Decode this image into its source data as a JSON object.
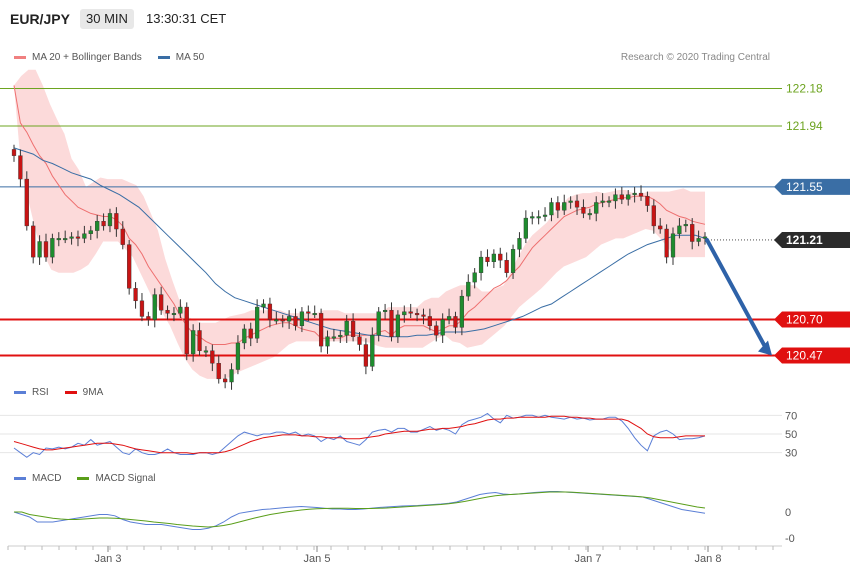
{
  "header": {
    "symbol": "EUR/JPY",
    "timeframe": "30 MIN",
    "time": "13:30:31 CET"
  },
  "legend_main": [
    {
      "label": "MA 20 + Bollinger Bands",
      "color": "#f08080"
    },
    {
      "label": "MA 50",
      "color": "#3a6ea5"
    }
  ],
  "copyright": "Research © 2020 Trading Central",
  "legend_rsi": [
    {
      "label": "RSI",
      "color": "#5b7fd6"
    },
    {
      "label": "9MA",
      "color": "#e01010"
    }
  ],
  "legend_macd": [
    {
      "label": "MACD",
      "color": "#5b7fd6"
    },
    {
      "label": "MACD Signal",
      "color": "#5a9e1a"
    }
  ],
  "colors": {
    "up": "#1e8c2e",
    "down": "#c81414",
    "band": "#fcdada",
    "ma20": "#ee6f6f",
    "ma50": "#3a6ea5",
    "resist": "#6da420",
    "support": "#e01010",
    "arrow": "#2e62a8"
  },
  "chart_data": [
    {
      "type": "candlestick",
      "ylim": [
        120.3,
        122.35
      ],
      "last_price": "121.21",
      "x_ticks": [
        "Jan 3",
        "Jan 5",
        "Jan 7",
        "Jan 8"
      ],
      "levels": [
        {
          "value": 122.18,
          "label": "122.18",
          "kind": "resistance"
        },
        {
          "value": 121.94,
          "label": "121.94",
          "kind": "resistance"
        },
        {
          "value": 121.55,
          "label": "121.55",
          "kind": "pivot"
        },
        {
          "value": 120.7,
          "label": "120.70",
          "kind": "support"
        },
        {
          "value": 120.47,
          "label": "120.47",
          "kind": "support"
        }
      ],
      "projection": {
        "from": 121.21,
        "to": 120.47
      },
      "close": [
        121.75,
        121.6,
        121.3,
        121.1,
        121.2,
        121.1,
        121.22,
        121.22,
        121.22,
        121.23,
        121.22,
        121.25,
        121.27,
        121.33,
        121.3,
        121.38,
        121.28,
        121.18,
        120.9,
        120.82,
        120.72,
        120.7,
        120.86,
        120.76,
        120.74,
        120.74,
        120.78,
        120.48,
        120.63,
        120.5,
        120.5,
        120.42,
        120.32,
        120.3,
        120.38,
        120.55,
        120.64,
        120.58,
        120.78,
        120.8,
        120.7,
        120.7,
        120.69,
        120.72,
        120.66,
        120.75,
        120.74,
        120.74,
        120.53,
        120.59,
        120.59,
        120.6,
        120.69,
        120.59,
        120.54,
        120.4,
        120.6,
        120.75,
        120.76,
        120.59,
        120.73,
        120.75,
        120.74,
        120.73,
        120.72,
        120.66,
        120.6,
        120.7,
        120.72,
        120.65,
        120.85,
        120.94,
        121.0,
        121.1,
        121.07,
        121.12,
        121.08,
        121.0,
        121.15,
        121.22,
        121.35,
        121.36,
        121.36,
        121.37,
        121.45,
        121.4,
        121.45,
        121.46,
        121.42,
        121.38,
        121.38,
        121.45,
        121.46,
        121.46,
        121.5,
        121.47,
        121.5,
        121.51,
        121.49,
        121.43,
        121.3,
        121.28,
        121.1,
        121.25,
        121.3,
        121.31,
        121.2,
        121.22,
        121.23
      ],
      "ma20": [
        122.2,
        121.96,
        121.9,
        121.82,
        121.75,
        121.7,
        121.62,
        121.56,
        121.5,
        121.46,
        121.42,
        121.4,
        121.38,
        121.37,
        121.36,
        121.36,
        121.34,
        121.3,
        121.22,
        121.18,
        121.12,
        121.04,
        120.98,
        120.92,
        120.86,
        120.8,
        120.72,
        120.66,
        120.61,
        120.59,
        120.56,
        120.54,
        120.54,
        120.54,
        120.55,
        120.55,
        120.58,
        120.6,
        120.62,
        120.64,
        120.66,
        120.67,
        120.68,
        120.68,
        120.66,
        120.64,
        120.63,
        120.62,
        120.58,
        120.58,
        120.58,
        120.58,
        120.6,
        120.6,
        120.6,
        120.6,
        120.6,
        120.62,
        120.63,
        120.6,
        120.64,
        120.66,
        120.66,
        120.66,
        120.66,
        120.64,
        120.62,
        120.64,
        120.66,
        120.66,
        120.7,
        120.75,
        120.78,
        120.82,
        120.86,
        120.9,
        120.92,
        120.95,
        121.0,
        121.04,
        121.1,
        121.16,
        121.2,
        121.24,
        121.28,
        121.32,
        121.36,
        121.38,
        121.4,
        121.41,
        121.42,
        121.44,
        121.45,
        121.46,
        121.47,
        121.48,
        121.48,
        121.49,
        121.49,
        121.49,
        121.47,
        121.44,
        121.4,
        121.38,
        121.36,
        121.35,
        121.33,
        121.32,
        121.31
      ],
      "bb_upper": [
        122.2,
        122.26,
        122.3,
        122.3,
        122.2,
        122.08,
        121.98,
        121.89,
        121.73,
        121.66,
        121.55,
        121.58,
        121.61,
        121.6,
        121.6,
        121.6,
        121.58,
        121.56,
        121.49,
        121.38,
        121.27,
        121.09,
        120.95,
        120.82,
        120.72,
        120.7,
        120.68,
        120.68,
        120.68,
        120.7,
        120.72,
        120.73,
        120.74,
        120.76,
        120.76,
        120.76,
        120.76,
        120.76,
        120.74,
        120.74,
        120.74,
        120.74,
        120.74,
        120.76,
        120.76,
        120.76,
        120.74,
        120.74,
        120.74,
        120.74,
        120.74,
        120.74,
        120.78,
        120.78,
        120.78,
        120.78,
        120.78,
        120.82,
        120.84,
        120.84,
        120.88,
        120.9,
        120.92,
        120.92,
        120.92,
        120.88,
        120.88,
        120.9,
        120.92,
        121.0,
        121.1,
        121.18,
        121.24,
        121.28,
        121.32,
        121.38,
        121.43,
        121.48,
        121.5,
        121.51,
        121.51,
        121.52,
        121.51,
        121.52,
        121.53,
        121.53,
        121.51,
        121.5,
        121.52,
        121.52,
        121.52,
        121.52,
        121.53,
        121.54,
        121.52,
        121.52,
        121.52
      ],
      "bb_lower": [
        122.2,
        121.65,
        121.45,
        121.25,
        121.12,
        121.02,
        121.0,
        121.0,
        121.0,
        121.02,
        121.05,
        121.12,
        121.2,
        121.2,
        121.2,
        121.15,
        121.1,
        121.0,
        120.9,
        120.8,
        120.74,
        120.66,
        120.55,
        120.45,
        120.38,
        120.34,
        120.32,
        120.32,
        120.32,
        120.33,
        120.36,
        120.38,
        120.4,
        120.42,
        120.44,
        120.46,
        120.5,
        120.54,
        120.56,
        120.56,
        120.56,
        120.56,
        120.56,
        120.56,
        120.56,
        120.56,
        120.56,
        120.56,
        120.55,
        120.53,
        120.52,
        120.52,
        120.52,
        120.52,
        120.52,
        120.52,
        120.55,
        120.58,
        120.6,
        120.56,
        120.55,
        120.52,
        120.53,
        120.54,
        120.58,
        120.62,
        120.66,
        120.72,
        120.78,
        120.82,
        120.86,
        120.9,
        120.95,
        121.0,
        121.04,
        121.06,
        121.08,
        121.1,
        121.14,
        121.18,
        121.2,
        121.22,
        121.22,
        121.24,
        121.26,
        121.28,
        121.27,
        121.22,
        121.16,
        121.1,
        121.1,
        121.1,
        121.1,
        121.1
      ],
      "ma50": [
        121.8,
        121.78,
        121.76,
        121.72,
        121.7,
        121.67,
        121.64,
        121.62,
        121.6,
        121.56,
        121.53,
        121.5,
        121.46,
        121.42,
        121.36,
        121.3,
        121.24,
        121.18,
        121.12,
        121.06,
        121.0,
        120.93,
        120.88,
        120.84,
        120.82,
        120.8,
        120.78,
        120.76,
        120.74,
        120.72,
        120.7,
        120.68,
        120.66,
        120.64,
        120.63,
        120.62,
        120.61,
        120.6,
        120.6,
        120.59,
        120.59,
        120.59,
        120.6,
        120.6,
        120.61,
        120.62,
        120.62,
        120.62,
        120.63,
        120.64,
        120.66,
        120.68,
        120.7,
        120.72,
        120.75,
        120.78,
        120.8,
        120.84,
        120.88,
        120.92,
        120.96,
        121.0,
        121.04,
        121.08,
        121.12,
        121.15,
        121.18,
        121.2,
        121.22,
        121.24,
        121.24,
        121.24,
        121.22
      ]
    },
    {
      "type": "line",
      "title": "RSI",
      "y_ticks": [
        30,
        50,
        70
      ],
      "ylim": [
        20,
        80
      ],
      "series": [
        {
          "name": "RSI",
          "values": [
            35,
            30,
            25,
            30,
            28,
            35,
            34,
            36,
            34,
            36,
            40,
            38,
            44,
            38,
            40,
            42,
            36,
            30,
            28,
            34,
            30,
            28,
            28,
            30,
            34,
            30,
            28,
            28,
            28,
            30,
            30,
            28,
            30,
            36,
            42,
            48,
            52,
            50,
            48,
            50,
            50,
            52,
            52,
            50,
            52,
            48,
            50,
            48,
            42,
            46,
            44,
            48,
            42,
            40,
            38,
            44,
            52,
            54,
            55,
            52,
            56,
            56,
            52,
            52,
            55,
            58,
            54,
            56,
            54,
            50,
            60,
            64,
            66,
            68,
            72,
            66,
            62,
            70,
            67,
            68,
            70,
            70,
            68,
            70,
            68,
            67,
            66,
            68,
            66,
            67,
            65,
            66,
            66,
            68,
            68,
            64,
            56,
            46,
            38,
            32,
            48,
            52,
            54,
            50,
            44,
            45,
            45,
            46,
            48
          ]
        },
        {
          "name": "9MA",
          "values": [
            42,
            40,
            38,
            36,
            34,
            33,
            33,
            34,
            35,
            36,
            37,
            38,
            39,
            40,
            40,
            40,
            39,
            38,
            36,
            34,
            33,
            32,
            31,
            30,
            30,
            30,
            30,
            30,
            29,
            30,
            30,
            30,
            30,
            31,
            33,
            36,
            39,
            42,
            44,
            46,
            47,
            48,
            49,
            49,
            49,
            48,
            48,
            47,
            47,
            46,
            46,
            46,
            45,
            45,
            45,
            46,
            47,
            48,
            50,
            51,
            52,
            53,
            53,
            53,
            54,
            55,
            55,
            56,
            56,
            57,
            58,
            60,
            61,
            63,
            65,
            66,
            66,
            67,
            67,
            68,
            68,
            68,
            68,
            68,
            69,
            69,
            69,
            68,
            68,
            67,
            67,
            66,
            66,
            66,
            66,
            66,
            64,
            60,
            56,
            50,
            47,
            46,
            46,
            46,
            47,
            48,
            48,
            48,
            48
          ]
        }
      ]
    },
    {
      "type": "line",
      "title": "MACD",
      "y_ticks": [
        "0",
        "-0"
      ],
      "series": [
        {
          "name": "MACD",
          "values": [
            0.0,
            -0.01,
            -0.02,
            -0.04,
            -0.04,
            -0.04,
            -0.035,
            -0.03,
            -0.025,
            -0.02,
            -0.015,
            -0.01,
            -0.01,
            -0.015,
            -0.03,
            -0.04,
            -0.045,
            -0.05,
            -0.05,
            -0.05,
            -0.055,
            -0.06,
            -0.065,
            -0.07,
            -0.07,
            -0.065,
            -0.055,
            -0.04,
            -0.02,
            -0.005,
            0.0,
            0.005,
            0.01,
            0.012,
            0.015,
            0.018,
            0.02,
            0.022,
            0.02,
            0.018,
            0.015,
            0.012,
            0.012,
            0.01,
            0.01,
            0.012,
            0.015,
            0.018,
            0.02,
            0.022,
            0.024,
            0.025,
            0.026,
            0.028,
            0.03,
            0.032,
            0.035,
            0.04,
            0.05,
            0.06,
            0.07,
            0.075,
            0.078,
            0.072,
            0.07,
            0.072,
            0.075,
            0.078,
            0.08,
            0.082,
            0.082,
            0.08,
            0.078,
            0.076,
            0.074,
            0.072,
            0.07,
            0.068,
            0.066,
            0.064,
            0.062,
            0.06,
            0.05,
            0.04,
            0.03,
            0.02,
            0.01,
            0.005,
            0.0,
            -0.005
          ]
        },
        {
          "name": "MACD Signal",
          "values": [
            0.0,
            0.0,
            -0.01,
            -0.015,
            -0.02,
            -0.025,
            -0.028,
            -0.03,
            -0.03,
            -0.028,
            -0.026,
            -0.024,
            -0.024,
            -0.025,
            -0.027,
            -0.03,
            -0.033,
            -0.036,
            -0.04,
            -0.043,
            -0.046,
            -0.05,
            -0.053,
            -0.056,
            -0.058,
            -0.06,
            -0.058,
            -0.054,
            -0.048,
            -0.04,
            -0.032,
            -0.024,
            -0.017,
            -0.01,
            -0.005,
            0.0,
            0.004,
            0.008,
            0.011,
            0.013,
            0.014,
            0.015,
            0.015,
            0.015,
            0.014,
            0.014,
            0.014,
            0.015,
            0.016,
            0.018,
            0.02,
            0.022,
            0.024,
            0.026,
            0.028,
            0.03,
            0.033,
            0.037,
            0.042,
            0.048,
            0.054,
            0.06,
            0.065,
            0.068,
            0.07,
            0.072,
            0.074,
            0.076,
            0.078,
            0.08,
            0.08,
            0.08,
            0.079,
            0.077,
            0.075,
            0.073,
            0.071,
            0.069,
            0.067,
            0.065,
            0.063,
            0.06,
            0.056,
            0.05,
            0.044,
            0.038,
            0.032,
            0.026,
            0.02,
            0.016
          ]
        }
      ]
    }
  ]
}
